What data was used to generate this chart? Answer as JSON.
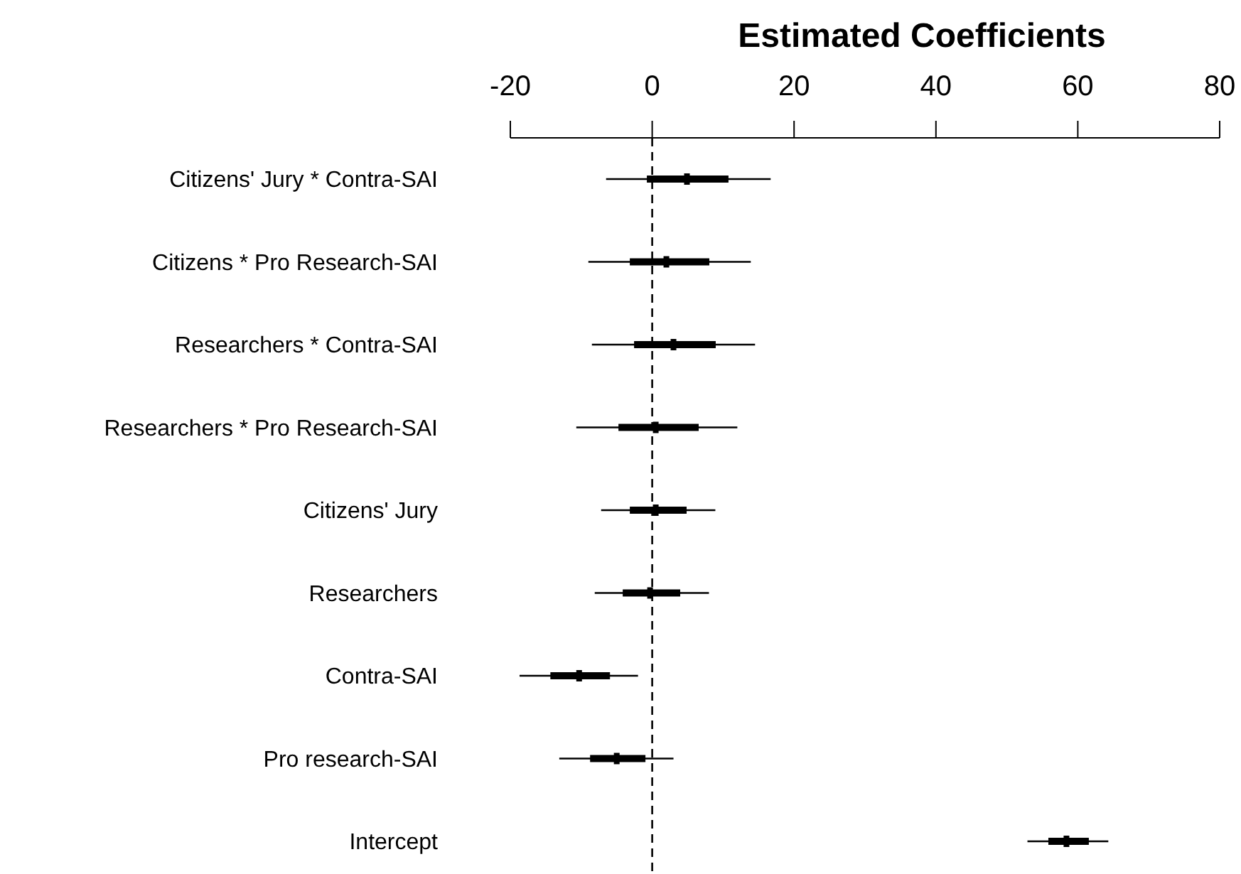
{
  "chart_data": {
    "type": "box",
    "orientation": "horizontal",
    "title": "Estimated Coefficients",
    "categories": [
      "Citizens' Jury * Contra-SAI",
      "Citizens * Pro Research-SAI",
      "Researchers * Contra-SAI",
      "Researchers * Pro Research-SAI",
      "Citizens' Jury",
      "Researchers",
      "Contra-SAI",
      "Pro research-SAI",
      "Intercept"
    ],
    "boxes": [
      {
        "low": -6.5,
        "q1": -0.7,
        "median": 4.9,
        "q3": 10.7,
        "high": 16.7
      },
      {
        "low": -9,
        "q1": -3.1,
        "median": 2,
        "q3": 8,
        "high": 13.9
      },
      {
        "low": -8.5,
        "q1": -2.5,
        "median": 3,
        "q3": 8.9,
        "high": 14.5
      },
      {
        "low": -10.7,
        "q1": -4.7,
        "median": 0.5,
        "q3": 6.5,
        "high": 12
      },
      {
        "low": -7.2,
        "q1": -3.1,
        "median": 0.5,
        "q3": 4.8,
        "high": 8.9
      },
      {
        "low": -8.1,
        "q1": -4.1,
        "median": -0.3,
        "q3": 3.9,
        "high": 8
      },
      {
        "low": -18.7,
        "q1": -14.3,
        "median": -10.3,
        "q3": -6,
        "high": -2
      },
      {
        "low": -13.1,
        "q1": -8.7,
        "median": -5,
        "q3": -1,
        "high": 3
      },
      {
        "low": 52.9,
        "q1": 55.9,
        "median": 58.4,
        "q3": 61.5,
        "high": 64.3
      }
    ],
    "xlim": [
      -20,
      80
    ],
    "xticks": [
      -20,
      0,
      20,
      40,
      60,
      80
    ],
    "ref_lines": [
      {
        "axis": "x",
        "value": 0,
        "line_style": "dashed",
        "color": "#000000"
      }
    ]
  }
}
